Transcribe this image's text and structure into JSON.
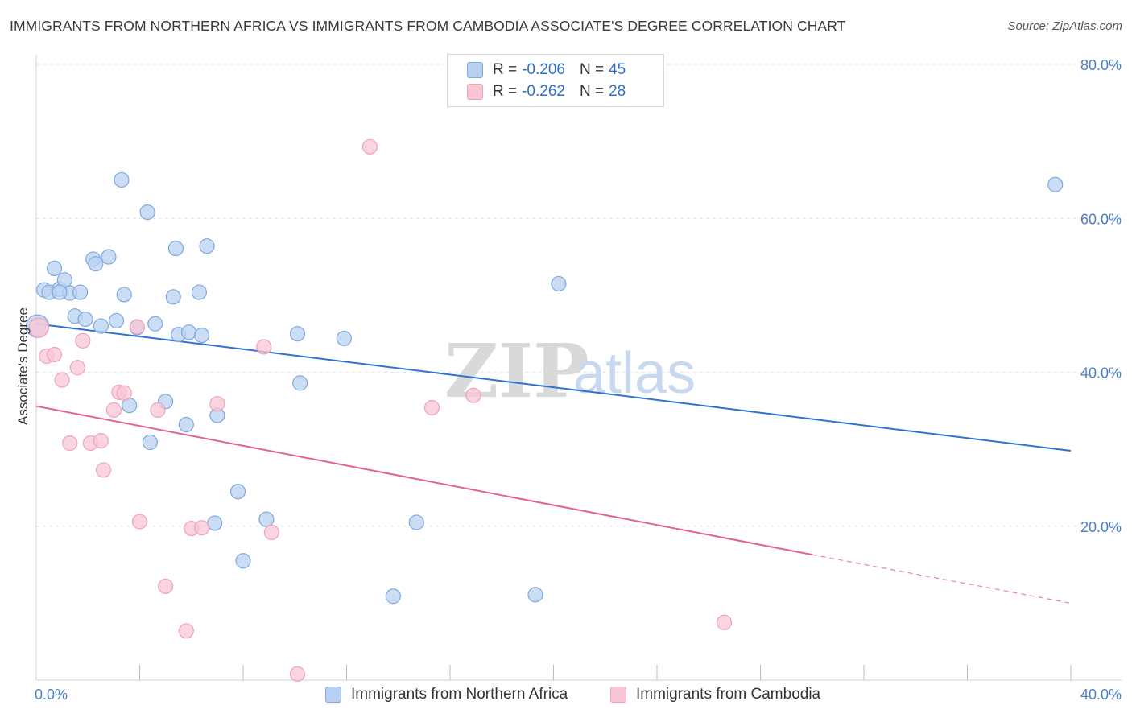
{
  "title": "IMMIGRANTS FROM NORTHERN AFRICA VS IMMIGRANTS FROM CAMBODIA ASSOCIATE'S DEGREE CORRELATION CHART",
  "source": "Source: ZipAtlas.com",
  "watermark": {
    "zip": "ZIP",
    "atlas": "atlas"
  },
  "colors": {
    "blue_fill": "#b9d1f1",
    "blue_stroke": "#7fa8de",
    "blue_line": "#2f72d0",
    "pink_fill": "#f8c6d4",
    "pink_stroke": "#eea3b9",
    "pink_line": "#e3628f",
    "tick_text": "#4a7fc8",
    "grid": "#e2e2e2"
  },
  "legend": {
    "rows": [
      {
        "r_label": "R =",
        "r_value": "-0.206",
        "n_label": "N =",
        "n_value": "45"
      },
      {
        "r_label": "R =",
        "r_value": "-0.262",
        "n_label": "N =",
        "n_value": "28"
      }
    ]
  },
  "chart_data": {
    "type": "scatter",
    "title": "IMMIGRANTS FROM NORTHERN AFRICA VS IMMIGRANTS FROM CAMBODIA ASSOCIATE'S DEGREE CORRELATION CHART",
    "xlabel": "",
    "ylabel": "Associate's Degree",
    "xlim": [
      0,
      40
    ],
    "ylim": [
      0,
      80
    ],
    "x_tick_labels": [
      "0.0%",
      "40.0%"
    ],
    "y_ticks": [
      20,
      40,
      60,
      80
    ],
    "y_tick_labels": [
      "20.0%",
      "40.0%",
      "60.0%",
      "80.0%"
    ],
    "grid": true,
    "legend_position": "bottom",
    "series": [
      {
        "name": "Immigrants from Northern Africa",
        "color": "#b9d1f1",
        "points": [
          [
            0.05,
            46.0
          ],
          [
            0.3,
            50.7
          ],
          [
            0.5,
            50.4
          ],
          [
            0.7,
            53.5
          ],
          [
            0.9,
            50.8
          ],
          [
            1.1,
            52.0
          ],
          [
            1.3,
            50.3
          ],
          [
            1.5,
            47.3
          ],
          [
            1.7,
            50.4
          ],
          [
            1.9,
            46.9
          ],
          [
            2.2,
            54.7
          ],
          [
            2.3,
            54.1
          ],
          [
            2.5,
            46.0
          ],
          [
            2.8,
            55.0
          ],
          [
            3.1,
            46.7
          ],
          [
            3.3,
            65.0
          ],
          [
            3.4,
            50.1
          ],
          [
            3.6,
            35.7
          ],
          [
            3.9,
            45.8
          ],
          [
            4.3,
            60.8
          ],
          [
            4.4,
            30.9
          ],
          [
            4.6,
            46.3
          ],
          [
            5.0,
            36.2
          ],
          [
            5.3,
            49.8
          ],
          [
            5.4,
            56.1
          ],
          [
            5.5,
            44.9
          ],
          [
            5.9,
            45.2
          ],
          [
            5.8,
            33.2
          ],
          [
            6.3,
            50.4
          ],
          [
            6.4,
            44.8
          ],
          [
            6.6,
            56.4
          ],
          [
            6.9,
            20.4
          ],
          [
            7.0,
            34.4
          ],
          [
            7.8,
            24.5
          ],
          [
            8.0,
            15.5
          ],
          [
            8.9,
            20.9
          ],
          [
            10.1,
            45.0
          ],
          [
            10.2,
            38.6
          ],
          [
            11.9,
            44.4
          ],
          [
            13.8,
            10.9
          ],
          [
            14.7,
            20.5
          ],
          [
            19.3,
            11.1
          ],
          [
            20.2,
            51.5
          ],
          [
            39.4,
            64.4
          ],
          [
            0.9,
            50.4
          ]
        ]
      },
      {
        "name": "Immigrants from Cambodia",
        "color": "#f8c6d4",
        "points": [
          [
            0.1,
            45.8
          ],
          [
            0.4,
            42.1
          ],
          [
            0.7,
            42.3
          ],
          [
            1.0,
            39.0
          ],
          [
            1.3,
            30.8
          ],
          [
            1.6,
            40.6
          ],
          [
            1.8,
            44.1
          ],
          [
            2.1,
            30.8
          ],
          [
            2.5,
            31.1
          ],
          [
            2.6,
            27.3
          ],
          [
            3.0,
            35.1
          ],
          [
            3.2,
            37.4
          ],
          [
            3.4,
            37.3
          ],
          [
            3.9,
            45.9
          ],
          [
            4.0,
            20.6
          ],
          [
            4.7,
            35.1
          ],
          [
            5.0,
            12.2
          ],
          [
            5.8,
            6.4
          ],
          [
            6.0,
            19.7
          ],
          [
            6.4,
            19.8
          ],
          [
            7.0,
            35.9
          ],
          [
            8.8,
            43.3
          ],
          [
            9.1,
            19.2
          ],
          [
            10.1,
            0.8
          ],
          [
            12.9,
            69.3
          ],
          [
            15.3,
            35.4
          ],
          [
            16.9,
            37.0
          ],
          [
            26.6,
            7.5
          ]
        ]
      }
    ],
    "trend_lines": [
      {
        "series": "Immigrants from Northern Africa",
        "x": [
          0,
          40
        ],
        "y": [
          46.3,
          29.8
        ]
      },
      {
        "series": "Immigrants from Cambodia",
        "x": [
          0,
          30
        ],
        "y": [
          35.6,
          16.3
        ],
        "dashed_to": [
          40,
          10.0
        ]
      }
    ]
  }
}
